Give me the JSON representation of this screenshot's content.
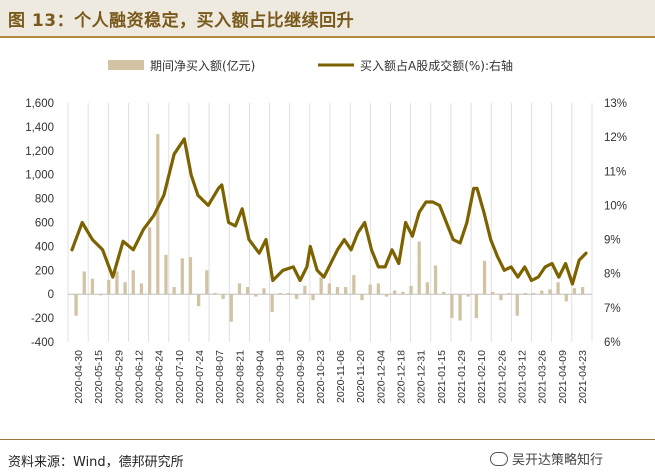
{
  "header": {
    "title": "图 13：个人融资稳定，买入额占比继续回升"
  },
  "footer": {
    "source": "资料来源：Wind，德邦研究所",
    "watermark": "吴开达策略知行"
  },
  "colors": {
    "bar": "#d1c3a4",
    "line": "#7d6200",
    "title": "#7a5a1c",
    "grid": "#d9d9d9"
  },
  "chart_data": {
    "type": "bar+line",
    "legend": [
      "期间净买入额(亿元)",
      "买入额占A股成交额(%):右轴"
    ],
    "legend_position": "top",
    "y_left": {
      "min": -400,
      "max": 1600,
      "ticks": [
        -400,
        -200,
        0,
        200,
        400,
        600,
        800,
        1000,
        1200,
        1400,
        1600
      ],
      "tick_labels": [
        "-400",
        "-200",
        "0",
        "200",
        "400",
        "600",
        "800",
        "1,000",
        "1,200",
        "1,400",
        "1,600"
      ]
    },
    "y_right": {
      "min": 6,
      "max": 13,
      "ticks": [
        6,
        7,
        8,
        9,
        10,
        11,
        12,
        13
      ],
      "tick_labels": [
        "6%",
        "7%",
        "8%",
        "9%",
        "10%",
        "11%",
        "12%",
        "13%"
      ]
    },
    "x_labels": [
      "2020-04-30",
      "2020-05-15",
      "2020-05-29",
      "2020-06-12",
      "2020-06-24",
      "2020-07-10",
      "2020-07-24",
      "2020-08-07",
      "2020-08-21",
      "2020-09-04",
      "2020-09-18",
      "2020-09-30",
      "2020-10-23",
      "2020-11-06",
      "2020-11-20",
      "2020-12-04",
      "2020-12-18",
      "2020-12-31",
      "2021-01-15",
      "2021-01-29",
      "2021-02-10",
      "2021-02-26",
      "2021-03-12",
      "2021-03-26",
      "2021-04-09",
      "2021-04-23"
    ],
    "series": [
      {
        "name": "期间净买入额(亿元)",
        "type": "bar",
        "axis": "left",
        "values": [
          -180,
          190,
          130,
          -10,
          120,
          190,
          100,
          200,
          90,
          560,
          1340,
          330,
          60,
          300,
          310,
          -100,
          200,
          10,
          -40,
          -230,
          90,
          60,
          -20,
          50,
          -150,
          10,
          10,
          -40,
          70,
          -50,
          140,
          90,
          60,
          60,
          160,
          -50,
          80,
          90,
          -20,
          30,
          20,
          70,
          440,
          100,
          240,
          20,
          -200,
          -220,
          -20,
          -200,
          280,
          20,
          -50,
          10,
          -180,
          10,
          10,
          30,
          40,
          100,
          -60,
          50,
          60
        ],
        "x_positions": [
          1,
          3,
          5,
          7,
          9,
          11,
          13,
          15,
          17,
          19,
          21,
          23,
          25,
          27,
          29,
          31,
          33,
          35,
          37,
          39,
          41,
          43,
          45,
          47,
          49,
          51,
          53,
          55,
          57,
          59,
          61,
          63,
          65,
          67,
          69,
          71,
          73,
          75,
          77,
          79,
          81,
          83,
          85,
          87,
          89,
          91,
          93,
          95,
          97,
          99,
          101,
          103,
          105,
          107,
          109,
          111,
          113,
          115,
          117,
          119,
          121,
          123,
          125
        ]
      },
      {
        "name": "买入额占A股成交额(%):右轴",
        "type": "line",
        "axis": "right",
        "points": [
          [
            0,
            8.7
          ],
          [
            3,
            9.5
          ],
          [
            6,
            9.0
          ],
          [
            9,
            8.7
          ],
          [
            12,
            7.9
          ],
          [
            15,
            8.95
          ],
          [
            18,
            8.7
          ],
          [
            21,
            9.3
          ],
          [
            24,
            9.7
          ],
          [
            27,
            10.3
          ],
          [
            30,
            11.5
          ],
          [
            33,
            11.95
          ],
          [
            35,
            10.9
          ],
          [
            37,
            10.3
          ],
          [
            40,
            10.0
          ],
          [
            43,
            10.5
          ],
          [
            44,
            10.6
          ],
          [
            46,
            9.5
          ],
          [
            48,
            9.4
          ],
          [
            50,
            9.9
          ],
          [
            52,
            9.0
          ],
          [
            55,
            8.6
          ],
          [
            57,
            9.0
          ],
          [
            59,
            7.8
          ],
          [
            62,
            8.1
          ],
          [
            65,
            8.2
          ],
          [
            67,
            7.8
          ],
          [
            69,
            8.2
          ],
          [
            70,
            8.8
          ],
          [
            72,
            8.1
          ],
          [
            74,
            7.9
          ],
          [
            76,
            8.3
          ],
          [
            78,
            8.7
          ],
          [
            80,
            9.0
          ],
          [
            82,
            8.7
          ],
          [
            84,
            9.2
          ],
          [
            86,
            9.5
          ],
          [
            88,
            8.7
          ],
          [
            90,
            8.2
          ],
          [
            92,
            8.2
          ],
          [
            94,
            8.7
          ],
          [
            96,
            8.3
          ],
          [
            98,
            9.5
          ],
          [
            100,
            9.1
          ],
          [
            102,
            9.8
          ],
          [
            104,
            10.1
          ],
          [
            106,
            10.1
          ],
          [
            108,
            10.0
          ],
          [
            110,
            9.5
          ],
          [
            112,
            9.0
          ],
          [
            114,
            8.9
          ],
          [
            116,
            9.5
          ],
          [
            118,
            10.5
          ],
          [
            119,
            10.5
          ],
          [
            121,
            9.8
          ],
          [
            123,
            9.0
          ],
          [
            125,
            8.5
          ],
          [
            127,
            8.1
          ],
          [
            129,
            8.2
          ],
          [
            131,
            7.9
          ],
          [
            133,
            8.2
          ],
          [
            135,
            7.8
          ],
          [
            137,
            7.9
          ],
          [
            139,
            8.2
          ],
          [
            141,
            8.3
          ],
          [
            143,
            7.9
          ],
          [
            145,
            8.3
          ],
          [
            147,
            7.7
          ],
          [
            149,
            8.4
          ],
          [
            151,
            8.6
          ]
        ],
        "x_range": [
          0,
          151
        ]
      }
    ]
  }
}
